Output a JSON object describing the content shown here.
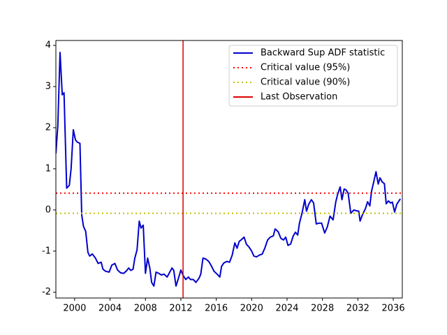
{
  "chart_data": {
    "type": "line",
    "xlim": [
      1997.88,
      2037.02
    ],
    "ylim": [
      -2.14,
      4.12
    ],
    "xticks": [
      2000,
      2004,
      2008,
      2012,
      2016,
      2020,
      2024,
      2028,
      2032,
      2036
    ],
    "yticks": [
      -2,
      -1,
      0,
      1,
      2,
      3,
      4
    ],
    "legend": "upper right",
    "series": [
      {
        "name": "Backward Sup ADF statistic",
        "color": "#0000cd",
        "style": "solid",
        "x": [
          1997.88,
          1998.1,
          1998.35,
          1998.6,
          1998.8,
          1999.1,
          1999.4,
          1999.6,
          1999.85,
          2000.1,
          2000.3,
          2000.6,
          2000.8,
          2001.0,
          2001.25,
          2001.5,
          2001.7,
          2002.0,
          2002.35,
          2002.65,
          2003.0,
          2003.2,
          2003.5,
          2003.9,
          2004.2,
          2004.55,
          2004.85,
          2005.2,
          2005.55,
          2005.9,
          2006.1,
          2006.35,
          2006.6,
          2006.8,
          2007.05,
          2007.3,
          2007.5,
          2007.75,
          2008.0,
          2008.25,
          2008.5,
          2008.7,
          2008.95,
          2009.2,
          2009.5,
          2009.8,
          2010.1,
          2010.45,
          2010.75,
          2011.0,
          2011.2,
          2011.45,
          2011.7,
          2012.0,
          2012.25,
          2012.55,
          2012.85,
          2013.1,
          2013.4,
          2013.7,
          2014.05,
          2014.25,
          2014.5,
          2014.8,
          2015.15,
          2015.45,
          2015.75,
          2016.1,
          2016.4,
          2016.6,
          2016.85,
          2017.2,
          2017.5,
          2017.8,
          2018.1,
          2018.35,
          2018.6,
          2018.8,
          2019.15,
          2019.4,
          2019.7,
          2020.0,
          2020.25,
          2020.55,
          2020.85,
          2021.2,
          2021.5,
          2021.8,
          2022.1,
          2022.45,
          2022.65,
          2023.0,
          2023.3,
          2023.6,
          2023.85,
          2024.1,
          2024.4,
          2024.7,
          2024.95,
          2025.2,
          2025.4,
          2025.7,
          2026.0,
          2026.2,
          2026.45,
          2026.75,
          2027.0,
          2027.3,
          2027.6,
          2027.9,
          2028.25,
          2028.55,
          2028.85,
          2029.2,
          2029.5,
          2029.7,
          2030.0,
          2030.2,
          2030.45,
          2030.65,
          2030.9,
          2031.2,
          2031.55,
          2031.85,
          2032.1,
          2032.25,
          2032.55,
          2032.85,
          2033.1,
          2033.35,
          2033.55,
          2033.8,
          2034.05,
          2034.3,
          2034.5,
          2034.75,
          2035.0,
          2035.2,
          2035.45,
          2035.7,
          2035.9,
          2036.15,
          2036.4,
          2036.8
        ],
        "values": [
          1.37,
          2.05,
          3.83,
          2.8,
          2.85,
          0.53,
          0.6,
          1.0,
          1.95,
          1.7,
          1.65,
          1.62,
          -0.12,
          -0.4,
          -0.52,
          -1.03,
          -1.12,
          -1.07,
          -1.17,
          -1.3,
          -1.27,
          -1.44,
          -1.49,
          -1.51,
          -1.34,
          -1.3,
          -1.46,
          -1.53,
          -1.54,
          -1.47,
          -1.41,
          -1.47,
          -1.44,
          -1.17,
          -0.97,
          -0.27,
          -0.44,
          -0.37,
          -1.54,
          -1.17,
          -1.42,
          -1.76,
          -1.85,
          -1.51,
          -1.54,
          -1.58,
          -1.56,
          -1.63,
          -1.51,
          -1.41,
          -1.47,
          -1.85,
          -1.68,
          -1.46,
          -1.59,
          -1.69,
          -1.63,
          -1.69,
          -1.69,
          -1.76,
          -1.66,
          -1.56,
          -1.17,
          -1.19,
          -1.25,
          -1.36,
          -1.49,
          -1.56,
          -1.63,
          -1.37,
          -1.29,
          -1.25,
          -1.27,
          -1.1,
          -0.8,
          -0.93,
          -0.76,
          -0.73,
          -0.66,
          -0.83,
          -0.9,
          -1.0,
          -1.12,
          -1.14,
          -1.1,
          -1.07,
          -0.92,
          -0.73,
          -0.66,
          -0.63,
          -0.46,
          -0.53,
          -0.69,
          -0.73,
          -0.66,
          -0.86,
          -0.83,
          -0.63,
          -0.54,
          -0.61,
          -0.32,
          -0.07,
          0.25,
          -0.03,
          0.14,
          0.25,
          0.17,
          -0.34,
          -0.32,
          -0.32,
          -0.56,
          -0.41,
          -0.15,
          -0.24,
          0.19,
          0.37,
          0.56,
          0.25,
          0.51,
          0.49,
          0.41,
          -0.08,
          0.0,
          -0.02,
          -0.03,
          -0.27,
          -0.1,
          0.03,
          0.2,
          0.1,
          0.46,
          0.69,
          0.93,
          0.63,
          0.78,
          0.68,
          0.64,
          0.15,
          0.22,
          0.17,
          0.19,
          -0.05,
          0.14,
          0.27
        ]
      },
      {
        "name": "Critical value (95%)",
        "color": "#ff0000",
        "style": "dotted",
        "hline": 0.41
      },
      {
        "name": "Critical value (90%)",
        "color": "#bfbf00",
        "style": "dotted",
        "hline": -0.08
      },
      {
        "name": "Last Observation",
        "color": "#dd0000",
        "style": "solid",
        "vline": 2012.25
      }
    ]
  }
}
